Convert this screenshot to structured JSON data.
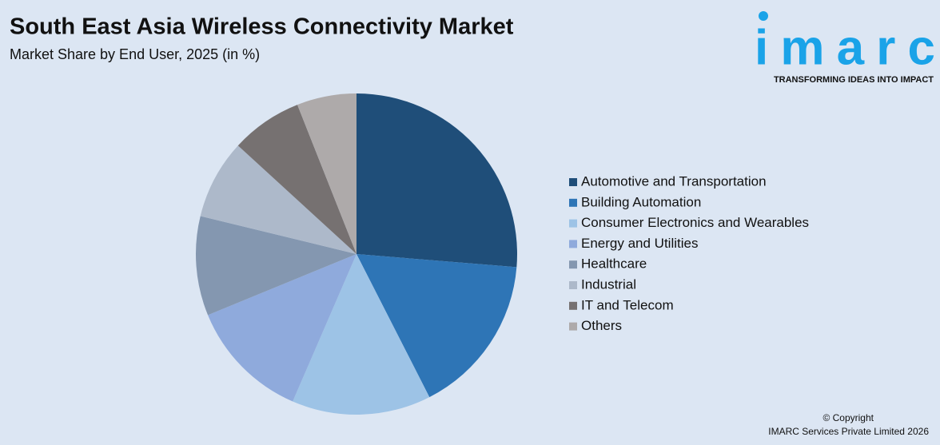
{
  "chart_data": {
    "type": "pie",
    "title": "South East Asia Wireless Connectivity Market",
    "subtitle": "Market Share by End User, 2025 (in %)",
    "categories": [
      "Automotive and Transportation",
      "Building Automation",
      "Consumer Electronics and Wearables",
      "Energy and Utilities",
      "Healthcare",
      "Industrial",
      "IT and Telecom",
      "Others"
    ],
    "values": [
      26.3,
      16.2,
      14,
      12.3,
      10,
      8,
      7.2,
      6
    ],
    "colors": [
      "#1f4e79",
      "#2e75b6",
      "#9dc3e6",
      "#8faadc",
      "#8497b0",
      "#adb9ca",
      "#767171",
      "#aeaaaa"
    ],
    "legend": "right"
  },
  "logo": {
    "name": "imarc",
    "tagline": "TRANSFORMING IDEAS INTO IMPACT"
  },
  "copyright": [
    "© Copyright",
    "IMARC Services Private Limited 2026"
  ]
}
